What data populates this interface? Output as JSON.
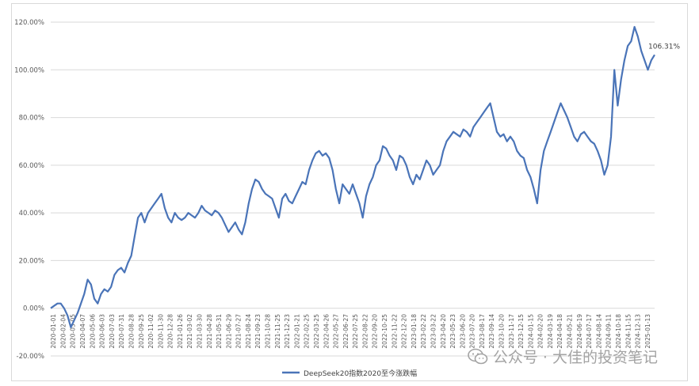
{
  "chart_data": {
    "type": "line",
    "title": "",
    "xlabel": "",
    "ylabel": "",
    "ylim": [
      -20,
      120
    ],
    "y_ticks": [
      "120.00%",
      "100.00%",
      "80.00%",
      "60.00%",
      "40.00%",
      "20.00%",
      "0.00%",
      "-20.00%"
    ],
    "grid": true,
    "legend_position": "bottom",
    "end_label": "106.31%",
    "x_ticks": [
      "2020-01-01",
      "2020-02-04",
      "2020-03-05",
      "2020-04-07",
      "2020-05-06",
      "2020-06-03",
      "2020-07-03",
      "2020-07-31",
      "2020-08-28",
      "2020-09-25",
      "2020-11-02",
      "2020-11-30",
      "2020-12-28",
      "2021-01-26",
      "2021-03-02",
      "2021-03-30",
      "2021-04-28",
      "2021-05-31",
      "2021-06-29",
      "2021-07-27",
      "2021-08-24",
      "2021-09-23",
      "2021-10-28",
      "2021-11-25",
      "2021-12-23",
      "2022-01-21",
      "2022-02-25",
      "2022-03-25",
      "2022-04-26",
      "2022-05-27",
      "2022-06-27",
      "2022-07-25",
      "2022-08-22",
      "2022-09-20",
      "2022-10-25",
      "2022-11-22",
      "2022-12-20",
      "2023-01-18",
      "2023-02-22",
      "2023-03-22",
      "2023-04-20",
      "2023-05-23",
      "2023-06-20",
      "2023-07-20",
      "2023-08-17",
      "2023-09-14",
      "2023-10-20",
      "2023-11-17",
      "2023-12-15",
      "2024-01-15",
      "2024-02-20",
      "2024-03-19",
      "2024-04-18",
      "2024-05-21",
      "2024-06-19",
      "2024-07-17",
      "2024-08-14",
      "2024-09-11",
      "2024-10-18",
      "2024-11-15",
      "2024-12-13",
      "2025-01-13"
    ],
    "series": [
      {
        "name": "DeepSeek20指数2020至今涨跌幅",
        "color": "#4a74b8",
        "values": [
          0,
          1,
          2,
          2,
          0,
          -3,
          -8,
          -5,
          -2,
          2,
          6,
          12,
          10,
          4,
          2,
          6,
          8,
          7,
          9,
          14,
          16,
          17,
          15,
          19,
          22,
          30,
          38,
          40,
          36,
          40,
          42,
          44,
          46,
          48,
          42,
          38,
          36,
          40,
          38,
          37,
          38,
          40,
          39,
          38,
          40,
          43,
          41,
          40,
          39,
          41,
          40,
          38,
          35,
          32,
          34,
          36,
          33,
          31,
          36,
          44,
          50,
          54,
          53,
          50,
          48,
          47,
          46,
          42,
          38,
          46,
          48,
          45,
          44,
          47,
          50,
          53,
          52,
          58,
          62,
          65,
          66,
          64,
          65,
          63,
          58,
          50,
          44,
          52,
          50,
          48,
          52,
          48,
          44,
          38,
          47,
          52,
          55,
          60,
          62,
          68,
          67,
          64,
          62,
          58,
          64,
          63,
          60,
          55,
          52,
          56,
          54,
          58,
          62,
          60,
          56,
          58,
          60,
          66,
          70,
          72,
          74,
          73,
          72,
          75,
          74,
          72,
          76,
          78,
          80,
          82,
          84,
          86,
          80,
          74,
          72,
          73,
          70,
          72,
          70,
          66,
          64,
          63,
          58,
          55,
          50,
          44,
          58,
          66,
          70,
          74,
          78,
          82,
          86,
          83,
          80,
          76,
          72,
          70,
          73,
          74,
          72,
          70,
          69,
          66,
          62,
          56,
          60,
          72,
          100,
          85,
          96,
          104,
          110,
          112,
          118,
          114,
          108,
          104,
          100,
          104,
          106.31
        ]
      }
    ]
  },
  "watermark": {
    "text": "公众号 · 大佳的投资笔记",
    "icon": "wechat-icon"
  }
}
